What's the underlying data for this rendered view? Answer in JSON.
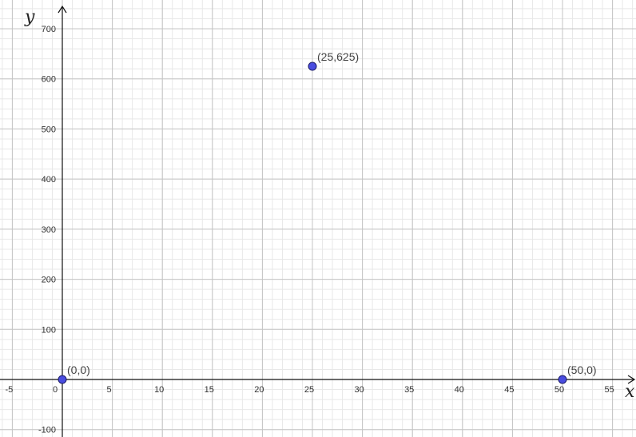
{
  "chart_data": {
    "type": "scatter",
    "xlabel": "x",
    "ylabel": "y",
    "xlim": [
      -5.5,
      57.5
    ],
    "ylim": [
      -110,
      740
    ],
    "x_ticks": [
      -5,
      0,
      5,
      10,
      15,
      20,
      25,
      30,
      35,
      40,
      45,
      50,
      55
    ],
    "y_ticks": [
      -100,
      100,
      200,
      300,
      400,
      500,
      600,
      700
    ],
    "x_tick_labels": [
      "-5",
      "0",
      "5",
      "10",
      "15",
      "20",
      "25",
      "30",
      "35",
      "40",
      "45",
      "50",
      "55"
    ],
    "y_tick_labels": [
      "-100",
      "100",
      "200",
      "300",
      "400",
      "500",
      "600",
      "700"
    ],
    "grid": true,
    "points": [
      {
        "x": 0,
        "y": 0,
        "label": "(0,0)"
      },
      {
        "x": 25,
        "y": 625,
        "label": "(25,625)"
      },
      {
        "x": 50,
        "y": 0,
        "label": "(50,0)"
      }
    ],
    "colors": {
      "point_fill": "#4a4de0",
      "point_stroke": "#1a1a66",
      "major_grid": "#c4c4c4",
      "minor_grid": "#e8e8e8",
      "axis": "#111111"
    }
  }
}
